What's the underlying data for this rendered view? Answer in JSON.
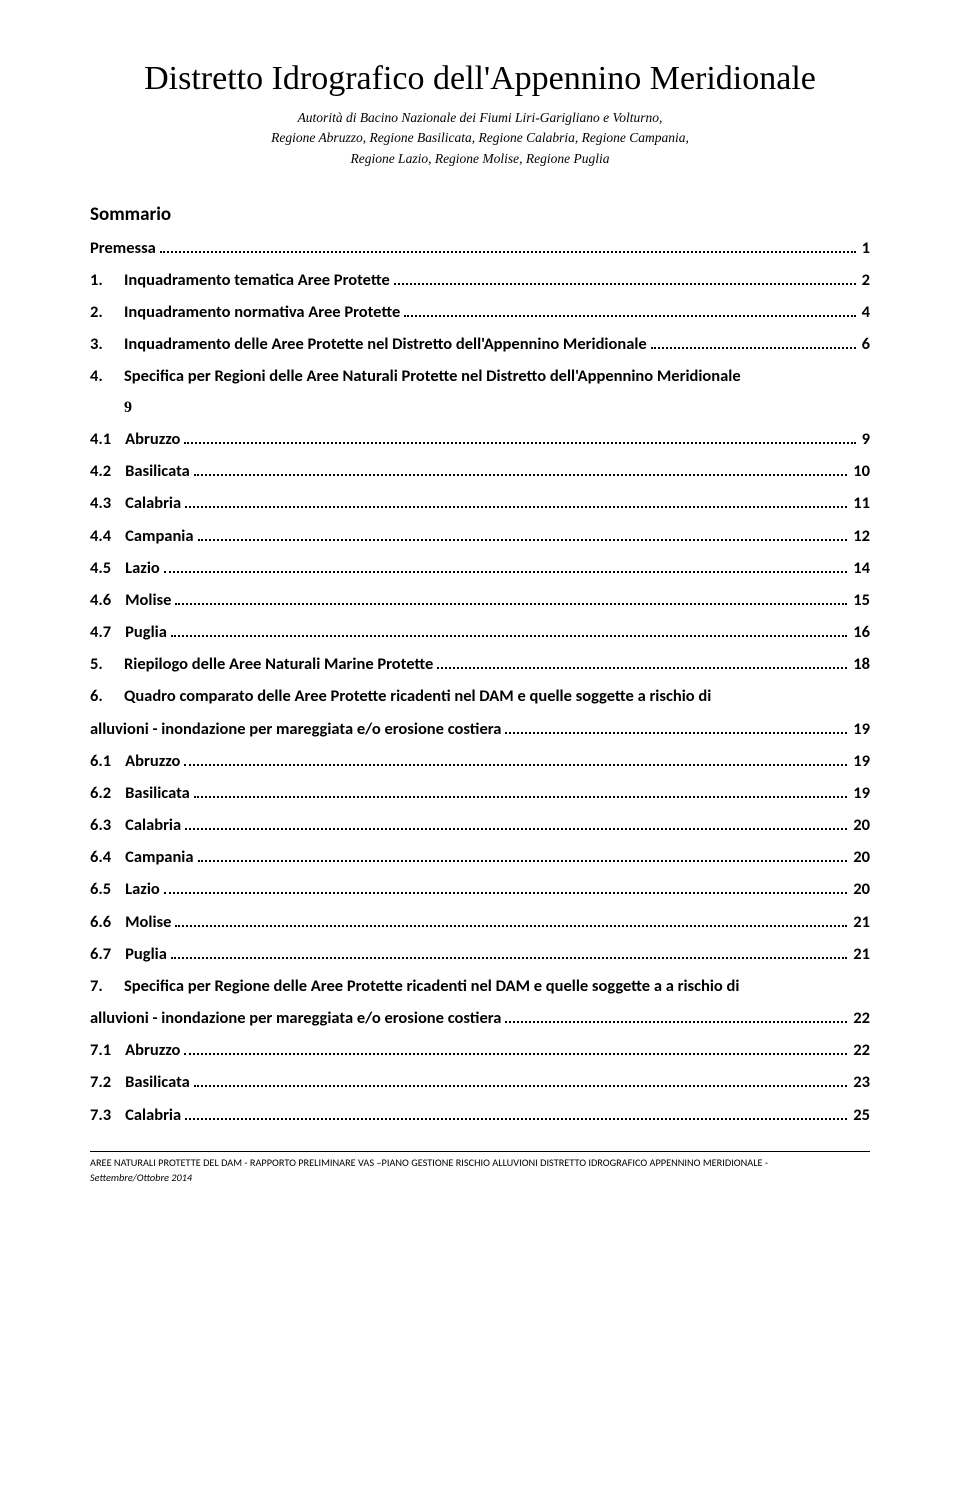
{
  "header": {
    "title": "Distretto Idrografico dell'Appennino Meridionale",
    "sub1": "Autorità di Bacino Nazionale dei Fiumi Liri-Garigliano e Volturno,",
    "sub2": "Regione Abruzzo, Regione Basilicata, Regione Calabria, Regione Campania,",
    "sub3": "Regione Lazio, Regione Molise, Regione Puglia"
  },
  "sommario_label": "Sommario",
  "toc": {
    "premessa": {
      "label": "Premessa",
      "page": "1"
    },
    "e1": {
      "num": "1.",
      "label": "Inquadramento tematica Aree Protette",
      "page": "2"
    },
    "e2": {
      "num": "2.",
      "label": "Inquadramento normativa Aree Protette",
      "page": "4"
    },
    "e3": {
      "num": "3.",
      "label": "Inquadramento delle Aree Protette nel Distretto dell'Appennino Meridionale",
      "page": "6"
    },
    "e4": {
      "num": "4.",
      "label": "Specifica per Regioni delle Aree Naturali Protette nel Distretto dell'Appennino Meridionale"
    },
    "nine": "9",
    "e41": {
      "num": "4.1",
      "label": "Abruzzo",
      "page": "9"
    },
    "e42": {
      "num": "4.2",
      "label": "Basilicata",
      "page": "10"
    },
    "e43": {
      "num": "4.3",
      "label": "Calabria",
      "page": "11"
    },
    "e44": {
      "num": "4.4",
      "label": "Campania",
      "page": "12"
    },
    "e45": {
      "num": "4.5",
      "label": "Lazio",
      "page": "14"
    },
    "e46": {
      "num": "4.6",
      "label": "Molise",
      "page": "15"
    },
    "e47": {
      "num": "4.7",
      "label": "Puglia",
      "page": "16"
    },
    "e5": {
      "num": "5.",
      "label": "Riepilogo delle Aree Naturali Marine Protette",
      "page": "18"
    },
    "e6": {
      "num": "6.",
      "label_a": "Quadro comparato delle Aree Protette ricadenti nel DAM e quelle soggette a rischio di",
      "label_b": "alluvioni - inondazione per mareggiata e/o erosione costiera",
      "page": "19"
    },
    "e61": {
      "num": "6.1",
      "label": "Abruzzo",
      "page": "19"
    },
    "e62": {
      "num": "6.2",
      "label": "Basilicata",
      "page": "19"
    },
    "e63": {
      "num": "6.3",
      "label": "Calabria",
      "page": "20"
    },
    "e64": {
      "num": "6.4",
      "label": "Campania",
      "page": "20"
    },
    "e65": {
      "num": "6.5",
      "label": "Lazio",
      "page": "20"
    },
    "e66": {
      "num": "6.6",
      "label": "Molise",
      "page": "21"
    },
    "e67": {
      "num": "6.7",
      "label": "Puglia",
      "page": "21"
    },
    "e7": {
      "num": "7.",
      "label_a": "Specifica per Regione delle Aree Protette ricadenti nel DAM e quelle soggette a a rischio di",
      "label_b": "alluvioni - inondazione per mareggiata e/o erosione costiera",
      "page": "22"
    },
    "e71": {
      "num": "7.1",
      "label": "Abruzzo",
      "page": "22"
    },
    "e72": {
      "num": "7.2",
      "label": "Basilicata",
      "page": "23"
    },
    "e73": {
      "num": "7.3",
      "label": "Calabria",
      "page": "25"
    }
  },
  "footer": {
    "line1": "AREE NATURALI PROTETTE DEL DAM - RAPPORTO PRELIMINARE VAS –PIANO GESTIONE RISCHIO ALLUVIONI DISTRETTO IDROGRAFICO APPENNINO MERIDIONALE -",
    "line2": "Settembre/Ottobre 2014"
  }
}
